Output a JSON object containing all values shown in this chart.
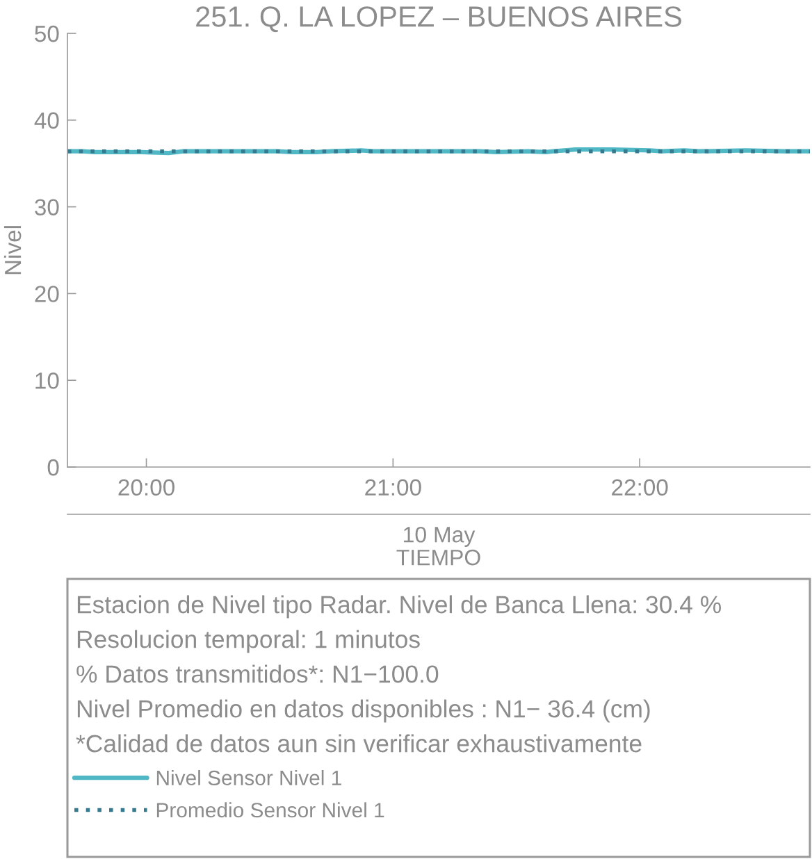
{
  "chart_data": {
    "type": "line",
    "title": "251. Q. LA LOPEZ – BUENOS AIRES",
    "xlabel": "TIEMPO",
    "ylabel": "Nivel",
    "xlim": [
      19.68,
      22.69
    ],
    "xticks": [
      {
        "value": 20,
        "label": "20:00"
      },
      {
        "value": 21,
        "label": "21:00"
      },
      {
        "value": 22,
        "label": "22:00"
      }
    ],
    "ylim": [
      0,
      50
    ],
    "yticks": [
      0,
      10,
      20,
      30,
      40,
      50
    ],
    "series": [
      {
        "name": "Nivel Sensor Nivel 1",
        "color": "#4fb8c4",
        "line_style": "solid",
        "x": [
          19.68,
          19.74,
          19.79,
          19.9,
          19.98,
          20.09,
          20.15,
          20.25,
          20.34,
          20.53,
          20.59,
          20.69,
          20.75,
          20.87,
          20.92,
          21.02,
          21.08,
          21.18,
          21.35,
          21.42,
          21.55,
          21.62,
          21.65,
          21.74,
          21.89,
          22.04,
          22.09,
          22.18,
          22.24,
          22.43,
          22.58,
          22.69
        ],
        "values": [
          36.4,
          36.4,
          36.3,
          36.3,
          36.3,
          36.2,
          36.4,
          36.4,
          36.4,
          36.4,
          36.3,
          36.3,
          36.4,
          36.5,
          36.4,
          36.4,
          36.4,
          36.4,
          36.4,
          36.3,
          36.4,
          36.3,
          36.4,
          36.6,
          36.6,
          36.5,
          36.4,
          36.5,
          36.4,
          36.5,
          36.4,
          36.4
        ]
      },
      {
        "name": "Promedio Sensor Nivel 1",
        "color": "#357a8e",
        "line_style": "dotted",
        "x": [
          19.68,
          22.69
        ],
        "values": [
          36.4,
          36.4
        ]
      }
    ],
    "legend": "bottom",
    "annotations": [
      "10 May",
      "Estacion de Nivel tipo Radar. Nivel de Banca Llena: 30.4 %",
      "Resolucion temporal: 1 minutos",
      "% Datos transmitidos*: N1−100.0",
      "Nivel Promedio en datos disponibles : N1− 36.4 (cm)",
      "*Calidad de datos aun sin verificar exhaustivamente"
    ]
  }
}
